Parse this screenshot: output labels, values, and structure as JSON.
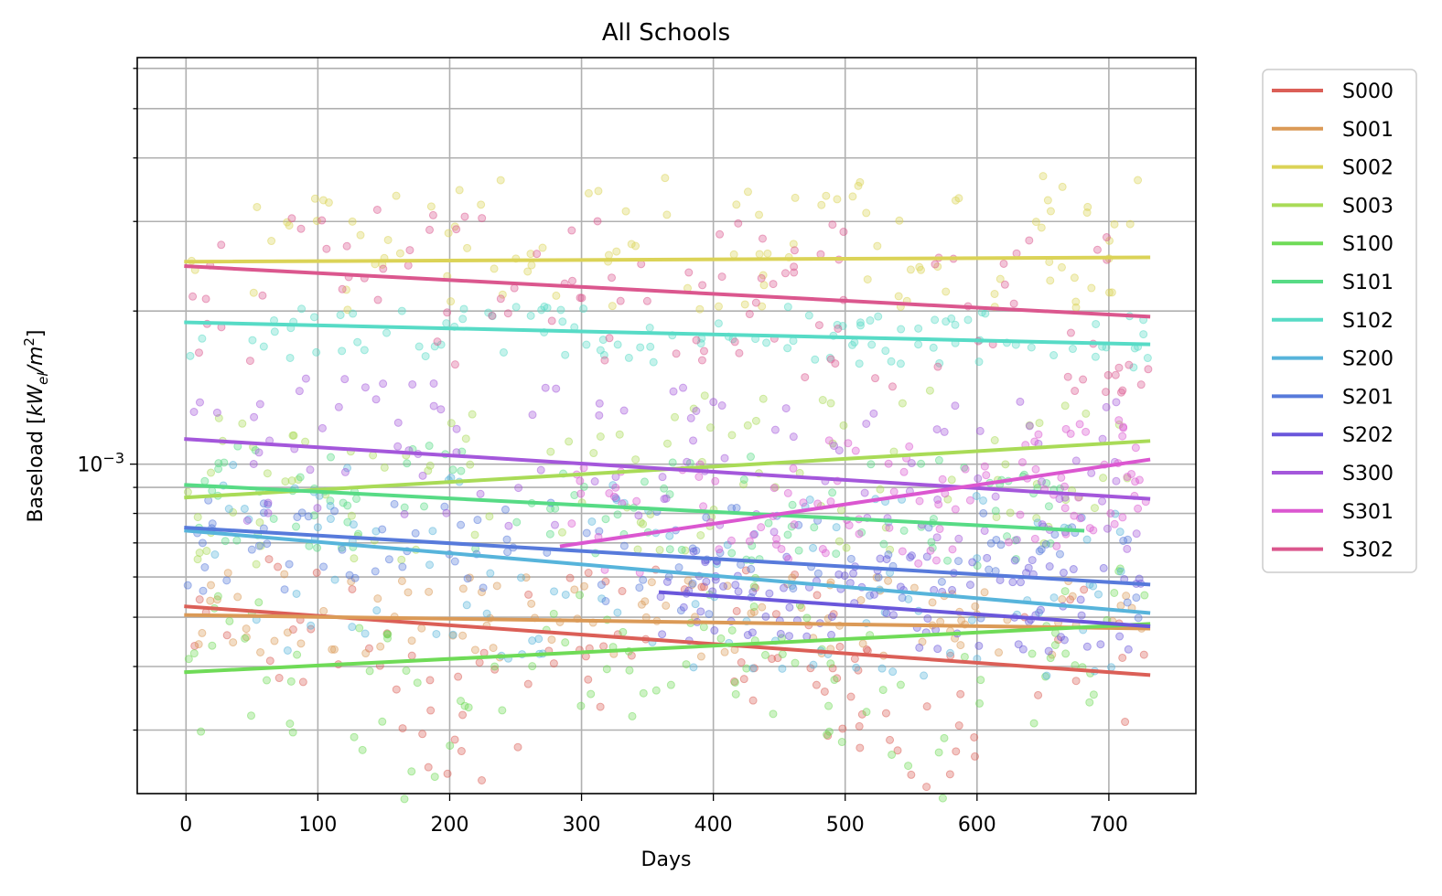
{
  "chart_data": {
    "type": "scatter",
    "title": "All Schools",
    "xlabel": "Days",
    "ylabel": "Baseload [kW_el/m^2]",
    "ylabel_parts": {
      "prefix": "Baseload [",
      "main": "kW",
      "sub": "el",
      "mid": "/m",
      "sup": "2",
      "suffix": "]"
    },
    "x_ticks": [
      0,
      100,
      200,
      300,
      400,
      500,
      600,
      700
    ],
    "xlim": [
      -37,
      766
    ],
    "y_scale": "log",
    "ylim": [
      0.000225,
      0.0063
    ],
    "y_major_tick_label": {
      "base": "10",
      "exponent": "−3",
      "value": 0.001
    },
    "grid": true,
    "legend_position": "outside-right",
    "series": [
      {
        "name": "S000",
        "color": "#db5f57",
        "trend": [
          0.000525,
          0.000385
        ],
        "x_range": [
          0,
          730
        ],
        "scatter_range": [
          0.00029,
          0.00075
        ],
        "valley": true
      },
      {
        "name": "S001",
        "color": "#db9a57",
        "trend": [
          0.000505,
          0.000475
        ],
        "x_range": [
          0,
          730
        ],
        "scatter_range": [
          0.00039,
          0.00067
        ],
        "valley": false
      },
      {
        "name": "S002",
        "color": "#dbd357",
        "trend": [
          0.0025,
          0.00255
        ],
        "x_range": [
          0,
          730
        ],
        "scatter_range": [
          0.0019,
          0.0045
        ],
        "valley": false
      },
      {
        "name": "S003",
        "color": "#a9db57",
        "trend": [
          0.00086,
          0.00111
        ],
        "x_range": [
          0,
          730
        ],
        "scatter_range": [
          0.00055,
          0.0016
        ],
        "valley": false
      },
      {
        "name": "S100",
        "color": "#6fdb57",
        "trend": [
          0.00039,
          0.000485
        ],
        "x_range": [
          0,
          730
        ],
        "scatter_range": [
          0.00026,
          0.0007
        ],
        "valley": true
      },
      {
        "name": "S101",
        "color": "#57db85",
        "trend": [
          0.00091,
          0.00074
        ],
        "x_range": [
          0,
          680
        ],
        "scatter_range": [
          0.0006,
          0.0012
        ],
        "valley": false
      },
      {
        "name": "S102",
        "color": "#57dbc6",
        "trend": [
          0.0019,
          0.00172
        ],
        "x_range": [
          0,
          730
        ],
        "scatter_range": [
          0.0015,
          0.0022
        ],
        "valley": false
      },
      {
        "name": "S200",
        "color": "#57b4db",
        "trend": [
          0.00074,
          0.00051
        ],
        "x_range": [
          0,
          730
        ],
        "scatter_range": [
          0.00033,
          0.0011
        ],
        "valley": false
      },
      {
        "name": "S201",
        "color": "#577adb",
        "trend": [
          0.00075,
          0.00058
        ],
        "x_range": [
          0,
          730
        ],
        "scatter_range": [
          0.00045,
          0.00095
        ],
        "valley": false
      },
      {
        "name": "S202",
        "color": "#6a57db",
        "trend": [
          0.00056,
          0.00048
        ],
        "x_range": [
          360,
          730
        ],
        "scatter_range": [
          0.00041,
          0.00075
        ],
        "valley": false
      },
      {
        "name": "S300",
        "color": "#a457db",
        "trend": [
          0.00112,
          0.000855
        ],
        "x_range": [
          0,
          730
        ],
        "scatter_range": [
          0.00065,
          0.0017
        ],
        "valley": false
      },
      {
        "name": "S301",
        "color": "#db57d0",
        "trend": [
          0.00069,
          0.00102
        ],
        "x_range": [
          285,
          730
        ],
        "scatter_range": [
          0.00055,
          0.0013
        ],
        "valley": false
      },
      {
        "name": "S302",
        "color": "#db578e",
        "trend": [
          0.00245,
          0.00195
        ],
        "x_range": [
          0,
          730
        ],
        "scatter_range": [
          0.0012,
          0.0035
        ],
        "valley": false
      }
    ]
  }
}
